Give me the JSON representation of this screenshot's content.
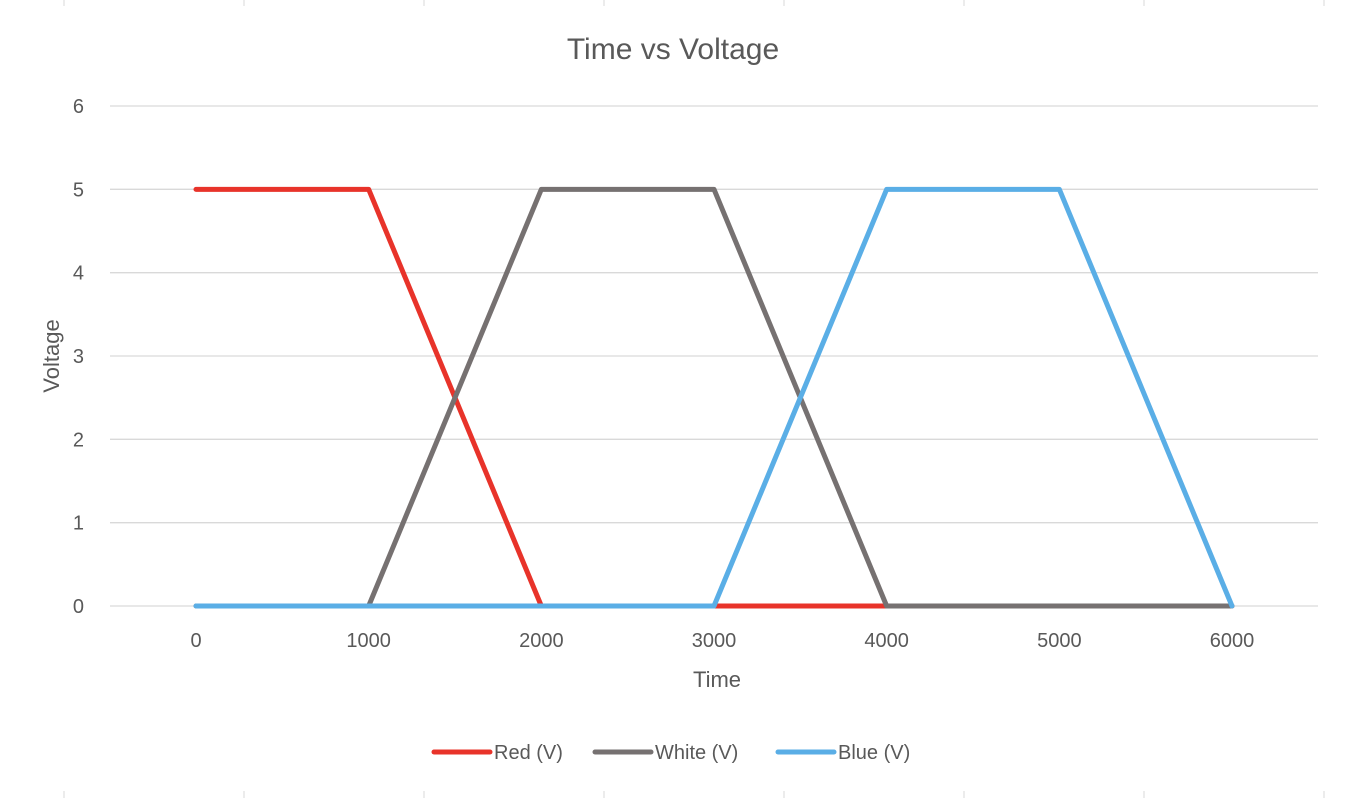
{
  "chart_data": {
    "type": "line",
    "title": "Time vs Voltage",
    "xlabel": "Time",
    "ylabel": "Voltage",
    "x_ticks": [
      "0",
      "1000",
      "2000",
      "3000",
      "4000",
      "5000",
      "6000"
    ],
    "y_ticks": [
      "0",
      "1",
      "2",
      "3",
      "4",
      "5",
      "6"
    ],
    "xlim": [
      0,
      6000
    ],
    "ylim": [
      0,
      6
    ],
    "grid": true,
    "legend_position": "bottom",
    "series": [
      {
        "name": "Red (V)",
        "color": "#e8332a",
        "points": [
          [
            0,
            5
          ],
          [
            1000,
            5
          ],
          [
            2000,
            0
          ],
          [
            3000,
            0
          ],
          [
            4000,
            0
          ],
          [
            5000,
            0
          ],
          [
            6000,
            0
          ]
        ]
      },
      {
        "name": "White (V)",
        "color": "#767171",
        "points": [
          [
            0,
            0
          ],
          [
            1000,
            0
          ],
          [
            2000,
            5
          ],
          [
            3000,
            5
          ],
          [
            4000,
            0
          ],
          [
            5000,
            0
          ],
          [
            6000,
            0
          ]
        ]
      },
      {
        "name": "Blue (V)",
        "color": "#5aaee6",
        "points": [
          [
            0,
            0
          ],
          [
            1000,
            0
          ],
          [
            2000,
            0
          ],
          [
            3000,
            0
          ],
          [
            4000,
            5
          ],
          [
            5000,
            5
          ],
          [
            6000,
            0
          ]
        ]
      }
    ]
  }
}
